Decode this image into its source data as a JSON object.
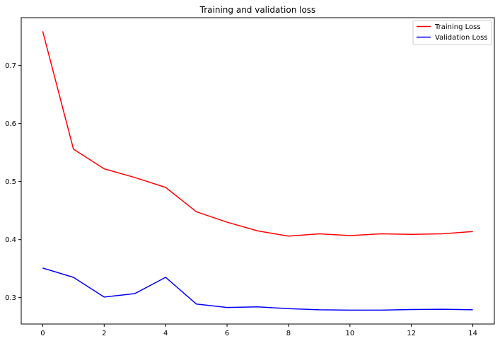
{
  "chart_data": {
    "type": "line",
    "title": "Training and validation loss",
    "xlabel": "",
    "ylabel": "",
    "x": [
      0,
      1,
      2,
      3,
      4,
      5,
      6,
      7,
      8,
      9,
      10,
      11,
      12,
      13,
      14
    ],
    "xlim": [
      -0.7,
      14.7
    ],
    "ylim": [
      0.2545,
      0.7825
    ],
    "x_ticks": [
      0,
      2,
      4,
      6,
      8,
      10,
      12,
      14
    ],
    "x_tick_labels": [
      "0",
      "2",
      "4",
      "6",
      "8",
      "10",
      "12",
      "14"
    ],
    "y_ticks": [
      0.3,
      0.4,
      0.5,
      0.6,
      0.7
    ],
    "y_tick_labels": [
      "0.3",
      "0.4",
      "0.5",
      "0.6",
      "0.7"
    ],
    "grid": false,
    "legend_position": "top-right",
    "series": [
      {
        "name": "Training Loss",
        "color": "#ff0000",
        "values": [
          0.759,
          0.556,
          0.522,
          0.507,
          0.49,
          0.448,
          0.43,
          0.415,
          0.406,
          0.41,
          0.407,
          0.41,
          0.409,
          0.41,
          0.414
        ]
      },
      {
        "name": "Validation Loss",
        "color": "#0000ff",
        "values": [
          0.351,
          0.335,
          0.301,
          0.307,
          0.335,
          0.289,
          0.283,
          0.284,
          0.281,
          0.279,
          0.2785,
          0.2785,
          0.2795,
          0.28,
          0.279
        ]
      }
    ]
  }
}
